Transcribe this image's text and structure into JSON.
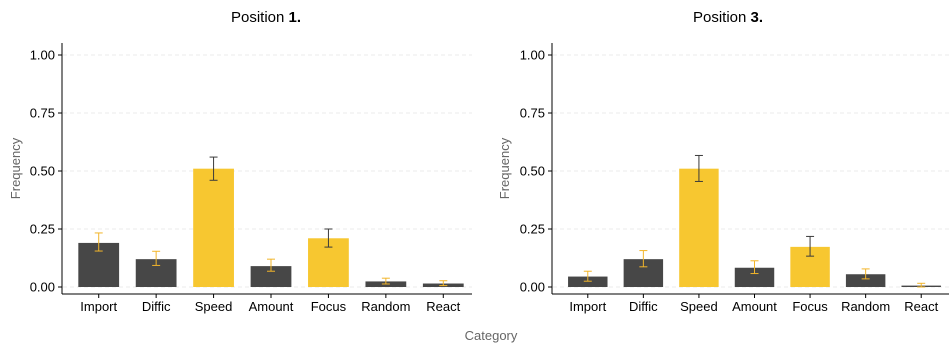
{
  "chart_data": [
    {
      "type": "bar",
      "title_prefix": "Position",
      "title_number": "1.",
      "ylabel": "Frequency",
      "categories": [
        "Import",
        "Diffic",
        "Speed",
        "Amount",
        "Focus",
        "Random",
        "React"
      ],
      "values": [
        0.19,
        0.12,
        0.51,
        0.09,
        0.21,
        0.024,
        0.015
      ],
      "err_low": [
        0.155,
        0.093,
        0.46,
        0.068,
        0.172,
        0.013,
        0.006
      ],
      "err_high": [
        0.233,
        0.154,
        0.56,
        0.12,
        0.25,
        0.038,
        0.027
      ],
      "highlight": [
        false,
        false,
        true,
        false,
        true,
        false,
        false
      ],
      "ylim": [
        0,
        1.0
      ],
      "yticks": [
        "0.00",
        "0.25",
        "0.50",
        "0.75",
        "1.00"
      ],
      "grid": true
    },
    {
      "type": "bar",
      "title_prefix": "Position",
      "title_number": "3.",
      "ylabel": "Frequency",
      "categories": [
        "Import",
        "Diffic",
        "Speed",
        "Amount",
        "Focus",
        "Random",
        "React"
      ],
      "values": [
        0.045,
        0.12,
        0.51,
        0.083,
        0.173,
        0.055,
        0.006
      ],
      "err_low": [
        0.025,
        0.087,
        0.455,
        0.058,
        0.133,
        0.035,
        0.0
      ],
      "err_high": [
        0.068,
        0.157,
        0.567,
        0.113,
        0.218,
        0.078,
        0.016
      ],
      "highlight": [
        false,
        false,
        true,
        false,
        true,
        false,
        false
      ],
      "ylim": [
        0,
        1.0
      ],
      "yticks": [
        "0.00",
        "0.25",
        "0.50",
        "0.75",
        "1.00"
      ],
      "grid": true
    }
  ],
  "shared_xlabel": "Category",
  "colors": {
    "bar_default": "#474747",
    "bar_highlight": "#F7C730",
    "error_on_dark": "#F2B52A",
    "error_on_highlight": "#3a3a3a",
    "grid": "#EBEBEB",
    "axis": "#000000"
  }
}
